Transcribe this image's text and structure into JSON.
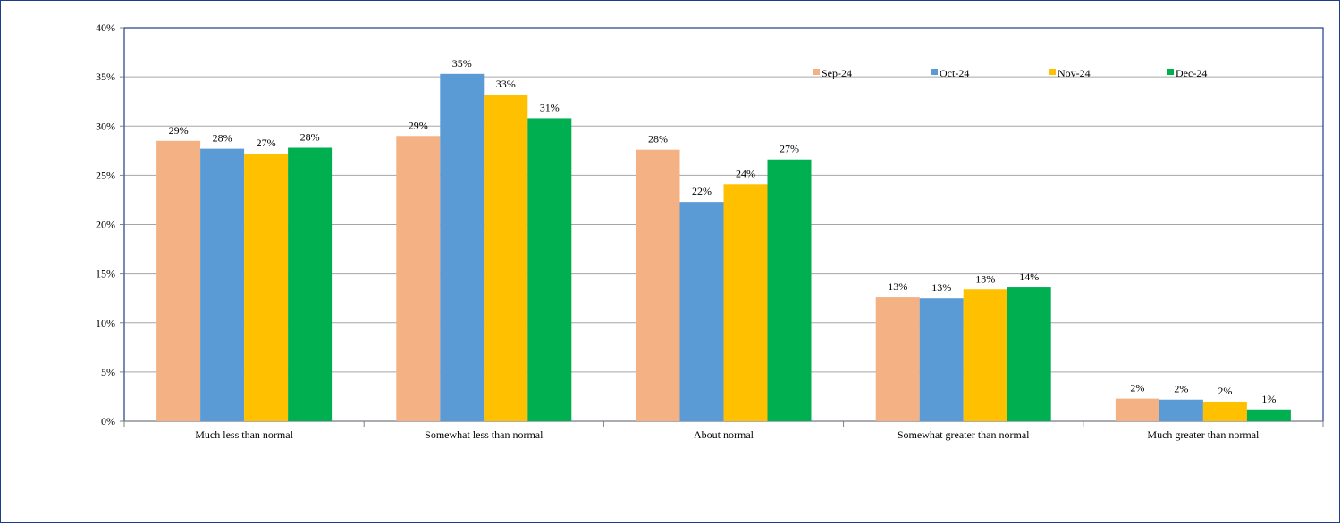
{
  "chart_data": {
    "type": "bar",
    "title": "",
    "xlabel": "",
    "ylabel": "",
    "ylim": [
      0,
      40
    ],
    "y_ticks": [
      "0%",
      "5%",
      "10%",
      "15%",
      "20%",
      "25%",
      "30%",
      "35%",
      "40%"
    ],
    "grid": "horizontal",
    "legend_position": "top-right",
    "categories": [
      "Much less than normal",
      "Somewhat less than normal",
      "About normal",
      "Somewhat greater than normal",
      "Much greater than normal"
    ],
    "series": [
      {
        "name": "Sep-24",
        "color": "#f4b183",
        "values": [
          28.5,
          29.0,
          27.6,
          12.6,
          2.3
        ],
        "labels": [
          "29%",
          "29%",
          "28%",
          "13%",
          "2%"
        ]
      },
      {
        "name": "Oct-24",
        "color": "#5b9bd5",
        "values": [
          27.7,
          35.3,
          22.3,
          12.5,
          2.2
        ],
        "labels": [
          "28%",
          "35%",
          "22%",
          "13%",
          "2%"
        ]
      },
      {
        "name": "Nov-24",
        "color": "#ffc000",
        "values": [
          27.2,
          33.2,
          24.1,
          13.4,
          2.0
        ],
        "labels": [
          "27%",
          "33%",
          "24%",
          "13%",
          "2%"
        ]
      },
      {
        "name": "Dec-24",
        "color": "#00b050",
        "values": [
          27.8,
          30.8,
          26.6,
          13.6,
          1.2
        ],
        "labels": [
          "28%",
          "31%",
          "27%",
          "14%",
          "1%"
        ]
      }
    ]
  }
}
